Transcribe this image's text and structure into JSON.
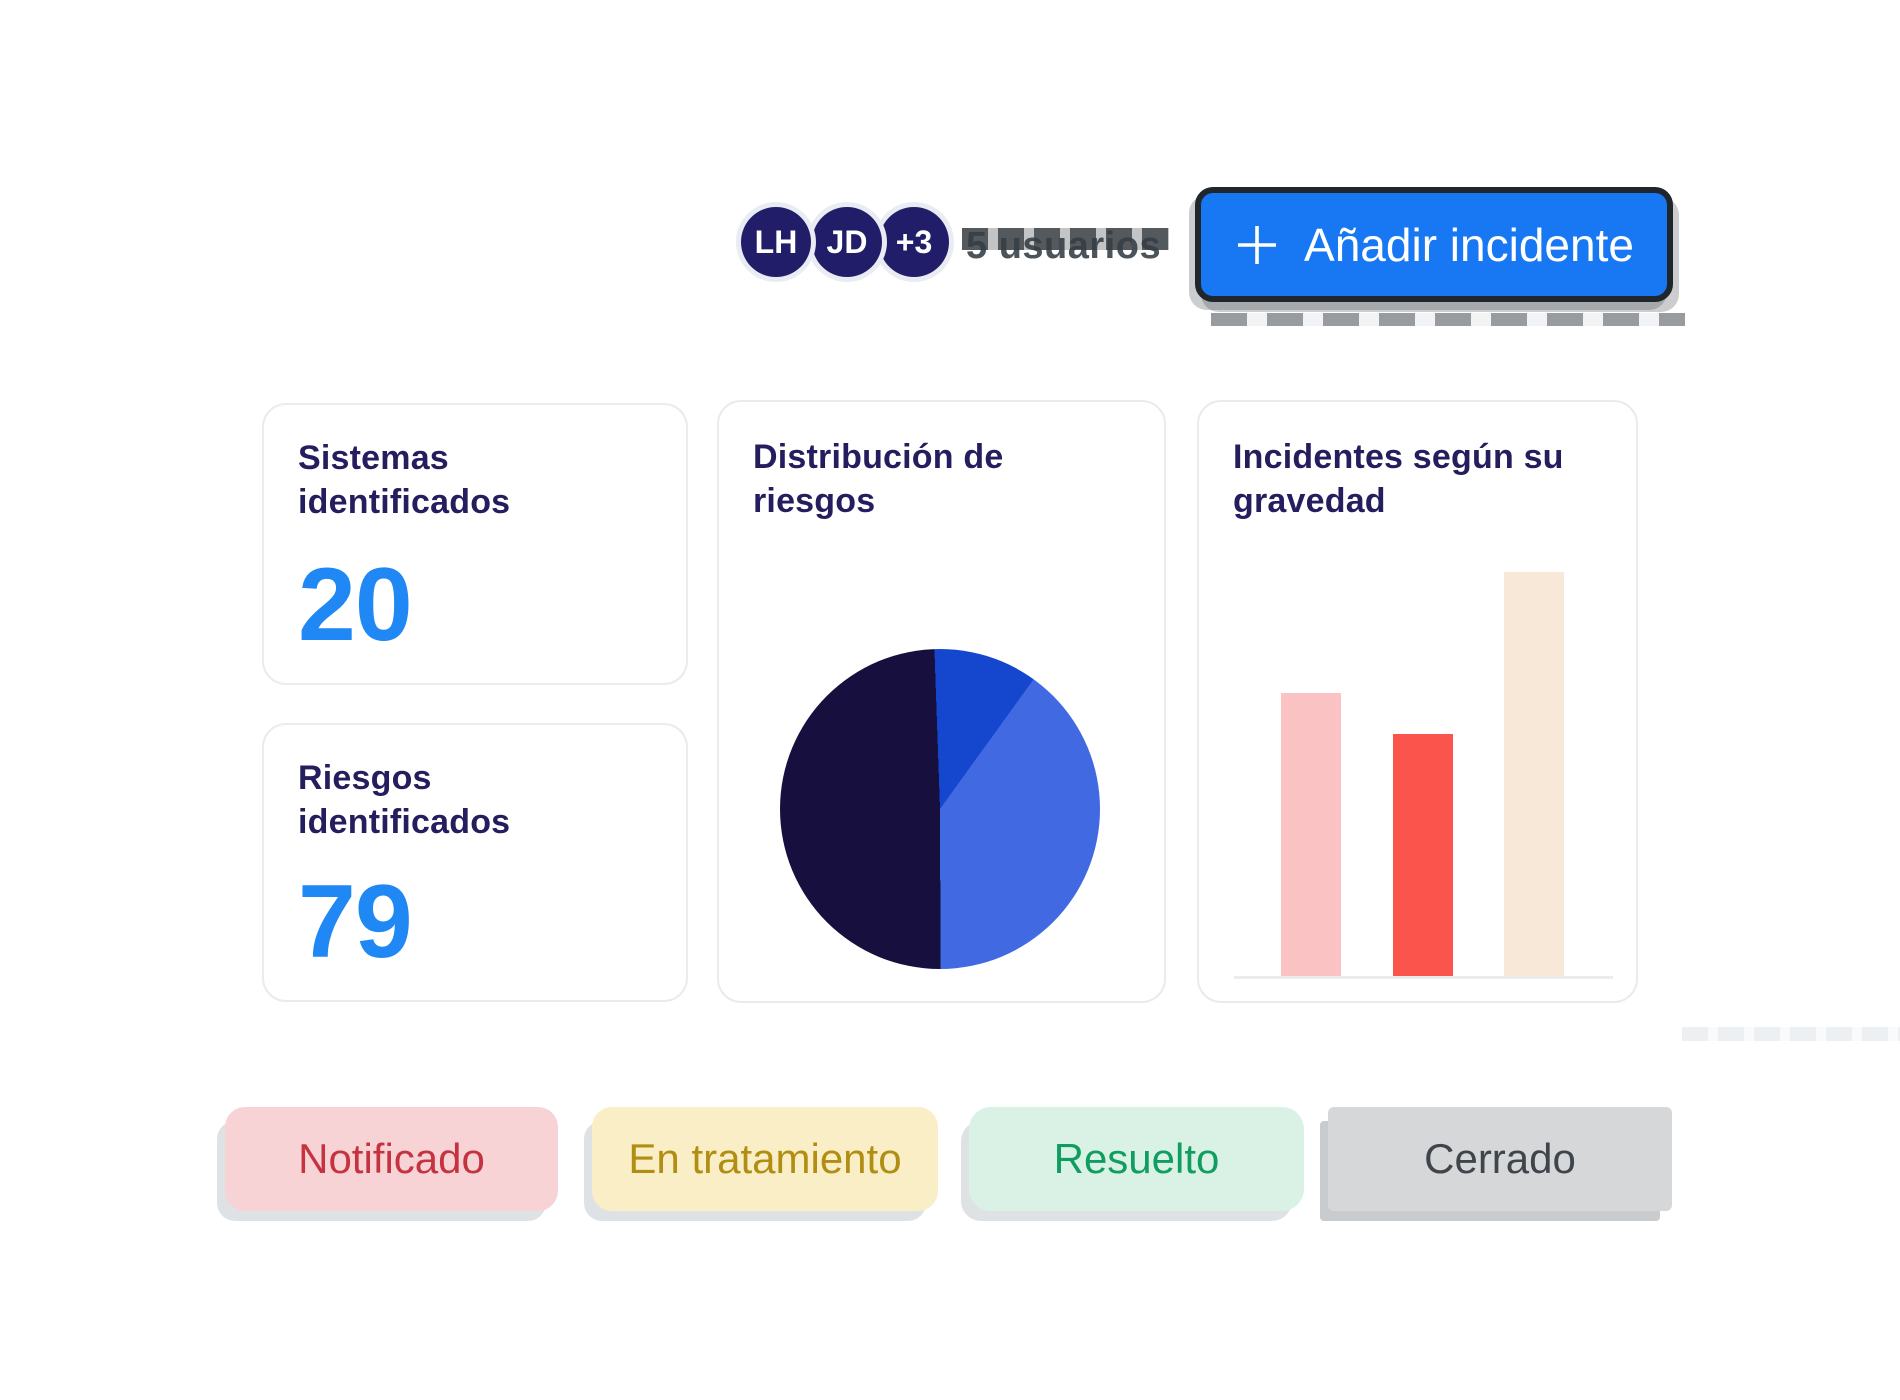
{
  "header": {
    "avatars": [
      {
        "initials": "LH"
      },
      {
        "initials": "JD"
      },
      {
        "initials": "+3"
      }
    ],
    "users_label": "5 usuarios",
    "add_incident_button": {
      "label": "Añadir incidente",
      "bg": "#1877f2",
      "text_color": "#ffffff"
    }
  },
  "stat_cards": [
    {
      "title": "Sistemas identificados",
      "value": "20",
      "value_color": "#1f88f4"
    },
    {
      "title": "Riesgos identificados",
      "value": "79",
      "value_color": "#1f88f4"
    }
  ],
  "chart_data": [
    {
      "type": "pie",
      "title": "Distribución de riesgos",
      "start_angle_deg": -2,
      "slices": [
        {
          "name": "slice-medium-blue",
          "value": 10.5,
          "color": "#1446ce"
        },
        {
          "name": "slice-royal-blue",
          "value": 40,
          "color": "#4169e1"
        },
        {
          "name": "slice-navy",
          "value": 49.5,
          "color": "#17103f"
        }
      ],
      "legend": "none",
      "data_labels": "none"
    },
    {
      "type": "bar",
      "title": "Incidentes según su gravedad",
      "categories": [
        "",
        "",
        ""
      ],
      "values": [
        7,
        6,
        10
      ],
      "colors": [
        "#fbc2c4",
        "#fa544d",
        "#f7e8d7"
      ],
      "ylim": [
        0,
        10
      ],
      "axis_ticks": "none",
      "baseline_color": "#e9edf0",
      "grid": "off"
    }
  ],
  "status_badges": [
    {
      "label": "Notificado",
      "bg": "#f8d3d5",
      "text_color": "#c43440"
    },
    {
      "label": "En tratamiento",
      "bg": "#faeec6",
      "text_color": "#b18d11"
    },
    {
      "label": "Resuelto",
      "bg": "#d9f2e5",
      "text_color": "#0f9e60"
    },
    {
      "label": "Cerrado",
      "bg": "#d5d7d9",
      "text_color": "#3f454a"
    }
  ],
  "accent_colors": {
    "title_navy": "#241e5e",
    "stat_value_blue": "#1f88f4",
    "avatar_navy": "#211d68",
    "button_blue": "#1877f2"
  }
}
